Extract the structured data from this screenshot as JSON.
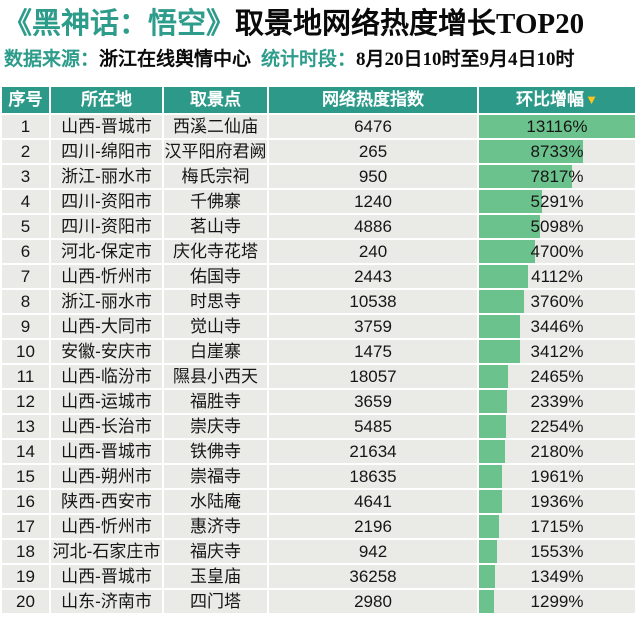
{
  "header": {
    "title_accent": "《黑神话：悟空》",
    "title_main": "取景地网络热度增长TOP20",
    "source_label": "数据来源：",
    "source_value": "浙江在线舆情中心",
    "period_label": "统计时段：",
    "period_value": "8月20日10时至9月4日10时"
  },
  "chart_data": {
    "type": "table",
    "title": "《黑神话：悟空》取景地网络热度增长TOP20",
    "columns": [
      "序号",
      "所在地",
      "取景点",
      "网络热度指数",
      "环比增幅"
    ],
    "sort_indicator": {
      "column": "环比增幅",
      "direction": "desc",
      "glyph": "▼"
    },
    "bar": {
      "column": "环比增幅",
      "max": 13116
    },
    "rows": [
      {
        "rank": "1",
        "location": "山西-晋城市",
        "spot": "西溪二仙庙",
        "heat_index": "6476",
        "growth_pct": "13116%",
        "growth_value": 13116
      },
      {
        "rank": "2",
        "location": "四川-绵阳市",
        "spot": "汉平阳府君阙",
        "heat_index": "265",
        "growth_pct": "8733%",
        "growth_value": 8733
      },
      {
        "rank": "3",
        "location": "浙江-丽水市",
        "spot": "梅氏宗祠",
        "heat_index": "950",
        "growth_pct": "7817%",
        "growth_value": 7817
      },
      {
        "rank": "4",
        "location": "四川-资阳市",
        "spot": "千佛寨",
        "heat_index": "1240",
        "growth_pct": "5291%",
        "growth_value": 5291
      },
      {
        "rank": "5",
        "location": "四川-资阳市",
        "spot": "茗山寺",
        "heat_index": "4886",
        "growth_pct": "5098%",
        "growth_value": 5098
      },
      {
        "rank": "6",
        "location": "河北-保定市",
        "spot": "庆化寺花塔",
        "heat_index": "240",
        "growth_pct": "4700%",
        "growth_value": 4700
      },
      {
        "rank": "7",
        "location": "山西-忻州市",
        "spot": "佑国寺",
        "heat_index": "2443",
        "growth_pct": "4112%",
        "growth_value": 4112
      },
      {
        "rank": "8",
        "location": "浙江-丽水市",
        "spot": "时思寺",
        "heat_index": "10538",
        "growth_pct": "3760%",
        "growth_value": 3760
      },
      {
        "rank": "9",
        "location": "山西-大同市",
        "spot": "觉山寺",
        "heat_index": "3759",
        "growth_pct": "3446%",
        "growth_value": 3446
      },
      {
        "rank": "10",
        "location": "安徽-安庆市",
        "spot": "白崖寨",
        "heat_index": "1475",
        "growth_pct": "3412%",
        "growth_value": 3412
      },
      {
        "rank": "11",
        "location": "山西-临汾市",
        "spot": "隰县小西天",
        "heat_index": "18057",
        "growth_pct": "2465%",
        "growth_value": 2465
      },
      {
        "rank": "12",
        "location": "山西-运城市",
        "spot": "福胜寺",
        "heat_index": "3659",
        "growth_pct": "2339%",
        "growth_value": 2339
      },
      {
        "rank": "13",
        "location": "山西-长治市",
        "spot": "崇庆寺",
        "heat_index": "5485",
        "growth_pct": "2254%",
        "growth_value": 2254
      },
      {
        "rank": "14",
        "location": "山西-晋城市",
        "spot": "铁佛寺",
        "heat_index": "21634",
        "growth_pct": "2180%",
        "growth_value": 2180
      },
      {
        "rank": "15",
        "location": "山西-朔州市",
        "spot": "崇福寺",
        "heat_index": "18635",
        "growth_pct": "1961%",
        "growth_value": 1961
      },
      {
        "rank": "16",
        "location": "陕西-西安市",
        "spot": "水陆庵",
        "heat_index": "4641",
        "growth_pct": "1936%",
        "growth_value": 1936
      },
      {
        "rank": "17",
        "location": "山西-忻州市",
        "spot": "惠济寺",
        "heat_index": "2196",
        "growth_pct": "1715%",
        "growth_value": 1715
      },
      {
        "rank": "18",
        "location": "河北-石家庄市",
        "spot": "福庆寺",
        "heat_index": "942",
        "growth_pct": "1553%",
        "growth_value": 1553
      },
      {
        "rank": "19",
        "location": "山西-晋城市",
        "spot": "玉皇庙",
        "heat_index": "36258",
        "growth_pct": "1349%",
        "growth_value": 1349
      },
      {
        "rank": "20",
        "location": "山东-济南市",
        "spot": "四门塔",
        "heat_index": "2980",
        "growth_pct": "1299%",
        "growth_value": 1299
      }
    ]
  },
  "colors": {
    "accent_teal": "#2e9c8b",
    "header_bg": "#2d9a89",
    "bar_green": "#6cc28d",
    "row_bg": "#eaeae7",
    "sort_arrow_yellow": "#ffc31e",
    "text_black": "#161616"
  }
}
